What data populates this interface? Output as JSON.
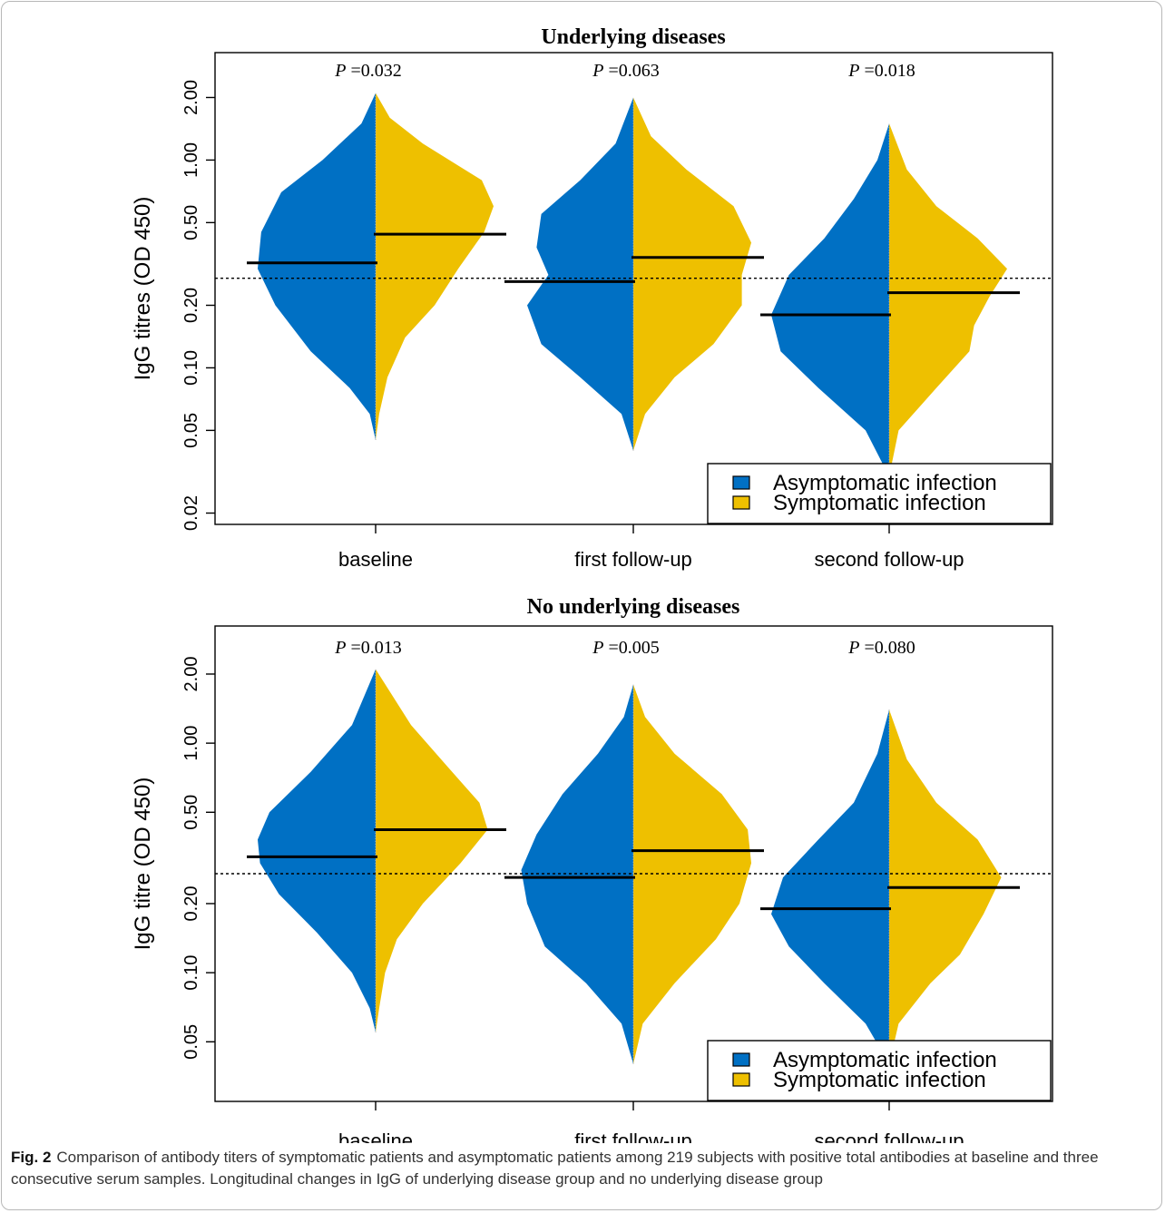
{
  "colors": {
    "asymptomatic": "#0070C4",
    "symptomatic": "#EEC000",
    "median_line": "#000000",
    "reference_line": "#000000"
  },
  "caption": {
    "label": "Fig. 2",
    "text": "Comparison of antibody titers of symptomatic patients and asymptomatic patients among 219 subjects with positive total antibodies at baseline and three consecutive serum samples. Longitudinal changes in IgG of underlying disease group and no underlying disease group"
  },
  "chart_data": [
    {
      "type": "split-violin",
      "title": "Underlying diseases",
      "ylabel": "IgG titres (OD 450)",
      "y_scale": "log",
      "ylim": [
        0.018,
        2.8
      ],
      "yticks": [
        0.02,
        0.05,
        0.1,
        0.2,
        0.5,
        1.0,
        2.0
      ],
      "ytick_labels": [
        "0.02",
        "0.05",
        "0.10",
        "0.20",
        "0.50",
        "1.00",
        "2.00"
      ],
      "reference_line": 0.27,
      "categories": [
        "baseline",
        "first follow-up",
        "second follow-up"
      ],
      "p_values": [
        "P =0.032",
        "P =0.063",
        "P =0.018"
      ],
      "legend": {
        "position": "bottom-right",
        "entries": [
          "Asymptomatic infection",
          "Symptomatic infection"
        ]
      },
      "series": [
        {
          "name": "Asymptomatic infection",
          "medians": [
            0.32,
            0.26,
            0.18
          ],
          "ranges": [
            [
              0.045,
              2.1
            ],
            [
              0.04,
              2.0
            ],
            [
              0.03,
              1.5
            ]
          ],
          "density": [
            [
              [
                0.045,
                0
              ],
              [
                0.06,
                0.05
              ],
              [
                0.08,
                0.22
              ],
              [
                0.12,
                0.55
              ],
              [
                0.2,
                0.85
              ],
              [
                0.3,
                1
              ],
              [
                0.45,
                0.97
              ],
              [
                0.7,
                0.8
              ],
              [
                1.0,
                0.45
              ],
              [
                1.5,
                0.12
              ],
              [
                2.1,
                0
              ]
            ],
            [
              [
                0.04,
                0
              ],
              [
                0.06,
                0.1
              ],
              [
                0.09,
                0.45
              ],
              [
                0.13,
                0.78
              ],
              [
                0.2,
                0.9
              ],
              [
                0.28,
                0.72
              ],
              [
                0.38,
                0.82
              ],
              [
                0.55,
                0.78
              ],
              [
                0.8,
                0.45
              ],
              [
                1.2,
                0.15
              ],
              [
                2.0,
                0
              ]
            ],
            [
              [
                0.03,
                0
              ],
              [
                0.05,
                0.2
              ],
              [
                0.08,
                0.6
              ],
              [
                0.12,
                0.92
              ],
              [
                0.18,
                1
              ],
              [
                0.28,
                0.85
              ],
              [
                0.42,
                0.55
              ],
              [
                0.65,
                0.3
              ],
              [
                1.0,
                0.1
              ],
              [
                1.5,
                0
              ]
            ]
          ]
        },
        {
          "name": "Symptomatic infection",
          "medians": [
            0.44,
            0.34,
            0.23
          ],
          "ranges": [
            [
              0.045,
              2.1
            ],
            [
              0.04,
              2.0
            ],
            [
              0.03,
              1.5
            ]
          ],
          "density": [
            [
              [
                0.045,
                0
              ],
              [
                0.06,
                0.03
              ],
              [
                0.09,
                0.1
              ],
              [
                0.14,
                0.25
              ],
              [
                0.2,
                0.5
              ],
              [
                0.3,
                0.7
              ],
              [
                0.45,
                0.92
              ],
              [
                0.6,
                1
              ],
              [
                0.8,
                0.9
              ],
              [
                1.2,
                0.4
              ],
              [
                1.6,
                0.12
              ],
              [
                2.1,
                0
              ]
            ],
            [
              [
                0.04,
                0
              ],
              [
                0.06,
                0.1
              ],
              [
                0.09,
                0.35
              ],
              [
                0.13,
                0.68
              ],
              [
                0.2,
                0.92
              ],
              [
                0.28,
                0.92
              ],
              [
                0.4,
                1
              ],
              [
                0.6,
                0.85
              ],
              [
                0.9,
                0.45
              ],
              [
                1.3,
                0.15
              ],
              [
                2.0,
                0
              ]
            ],
            [
              [
                0.03,
                0
              ],
              [
                0.05,
                0.08
              ],
              [
                0.08,
                0.4
              ],
              [
                0.12,
                0.68
              ],
              [
                0.16,
                0.72
              ],
              [
                0.22,
                0.85
              ],
              [
                0.3,
                1
              ],
              [
                0.42,
                0.75
              ],
              [
                0.6,
                0.4
              ],
              [
                0.9,
                0.15
              ],
              [
                1.5,
                0
              ]
            ]
          ]
        }
      ]
    },
    {
      "type": "split-violin",
      "title": "No underlying diseases",
      "ylabel": "IgG titre (OD 450)",
      "y_scale": "log",
      "ylim": [
        0.028,
        2.8
      ],
      "yticks": [
        0.05,
        0.1,
        0.2,
        0.5,
        1.0,
        2.0
      ],
      "ytick_labels": [
        "0.05",
        "0.10",
        "0.20",
        "0.50",
        "1.00",
        "2.00"
      ],
      "reference_line": 0.27,
      "categories": [
        "baseline",
        "first follow-up",
        "second follow-up"
      ],
      "p_values": [
        "P =0.013",
        "P =0.005",
        "P =0.080"
      ],
      "legend": {
        "position": "bottom-right",
        "entries": [
          "Asymptomatic infection",
          "Symptomatic infection"
        ]
      },
      "series": [
        {
          "name": "Asymptomatic infection",
          "medians": [
            0.32,
            0.26,
            0.19
          ],
          "ranges": [
            [
              0.055,
              2.1
            ],
            [
              0.04,
              1.8
            ],
            [
              0.04,
              1.4
            ]
          ],
          "density": [
            [
              [
                0.055,
                0
              ],
              [
                0.07,
                0.05
              ],
              [
                0.1,
                0.2
              ],
              [
                0.15,
                0.5
              ],
              [
                0.22,
                0.82
              ],
              [
                0.3,
                0.98
              ],
              [
                0.38,
                1
              ],
              [
                0.5,
                0.9
              ],
              [
                0.75,
                0.55
              ],
              [
                1.2,
                0.2
              ],
              [
                2.1,
                0
              ]
            ],
            [
              [
                0.04,
                0
              ],
              [
                0.06,
                0.1
              ],
              [
                0.09,
                0.4
              ],
              [
                0.13,
                0.75
              ],
              [
                0.2,
                0.9
              ],
              [
                0.28,
                0.95
              ],
              [
                0.4,
                0.82
              ],
              [
                0.6,
                0.6
              ],
              [
                0.9,
                0.3
              ],
              [
                1.3,
                0.08
              ],
              [
                1.8,
                0
              ]
            ],
            [
              [
                0.04,
                0
              ],
              [
                0.06,
                0.2
              ],
              [
                0.09,
                0.55
              ],
              [
                0.13,
                0.85
              ],
              [
                0.18,
                1
              ],
              [
                0.26,
                0.9
              ],
              [
                0.38,
                0.6
              ],
              [
                0.55,
                0.3
              ],
              [
                0.9,
                0.1
              ],
              [
                1.4,
                0
              ]
            ]
          ]
        },
        {
          "name": "Symptomatic infection",
          "medians": [
            0.42,
            0.34,
            0.235
          ],
          "ranges": [
            [
              0.055,
              2.1
            ],
            [
              0.04,
              1.8
            ],
            [
              0.04,
              1.4
            ]
          ],
          "density": [
            [
              [
                0.055,
                0
              ],
              [
                0.07,
                0.03
              ],
              [
                0.1,
                0.08
              ],
              [
                0.14,
                0.18
              ],
              [
                0.2,
                0.4
              ],
              [
                0.3,
                0.72
              ],
              [
                0.42,
                0.95
              ],
              [
                0.55,
                0.88
              ],
              [
                0.8,
                0.6
              ],
              [
                1.2,
                0.3
              ],
              [
                2.1,
                0
              ]
            ],
            [
              [
                0.04,
                0
              ],
              [
                0.06,
                0.08
              ],
              [
                0.09,
                0.35
              ],
              [
                0.14,
                0.7
              ],
              [
                0.2,
                0.9
              ],
              [
                0.3,
                1
              ],
              [
                0.42,
                0.97
              ],
              [
                0.6,
                0.75
              ],
              [
                0.9,
                0.35
              ],
              [
                1.3,
                0.1
              ],
              [
                1.8,
                0
              ]
            ],
            [
              [
                0.04,
                0
              ],
              [
                0.06,
                0.08
              ],
              [
                0.09,
                0.35
              ],
              [
                0.12,
                0.6
              ],
              [
                0.18,
                0.8
              ],
              [
                0.26,
                0.95
              ],
              [
                0.38,
                0.75
              ],
              [
                0.55,
                0.4
              ],
              [
                0.85,
                0.15
              ],
              [
                1.4,
                0
              ]
            ]
          ]
        }
      ]
    }
  ]
}
